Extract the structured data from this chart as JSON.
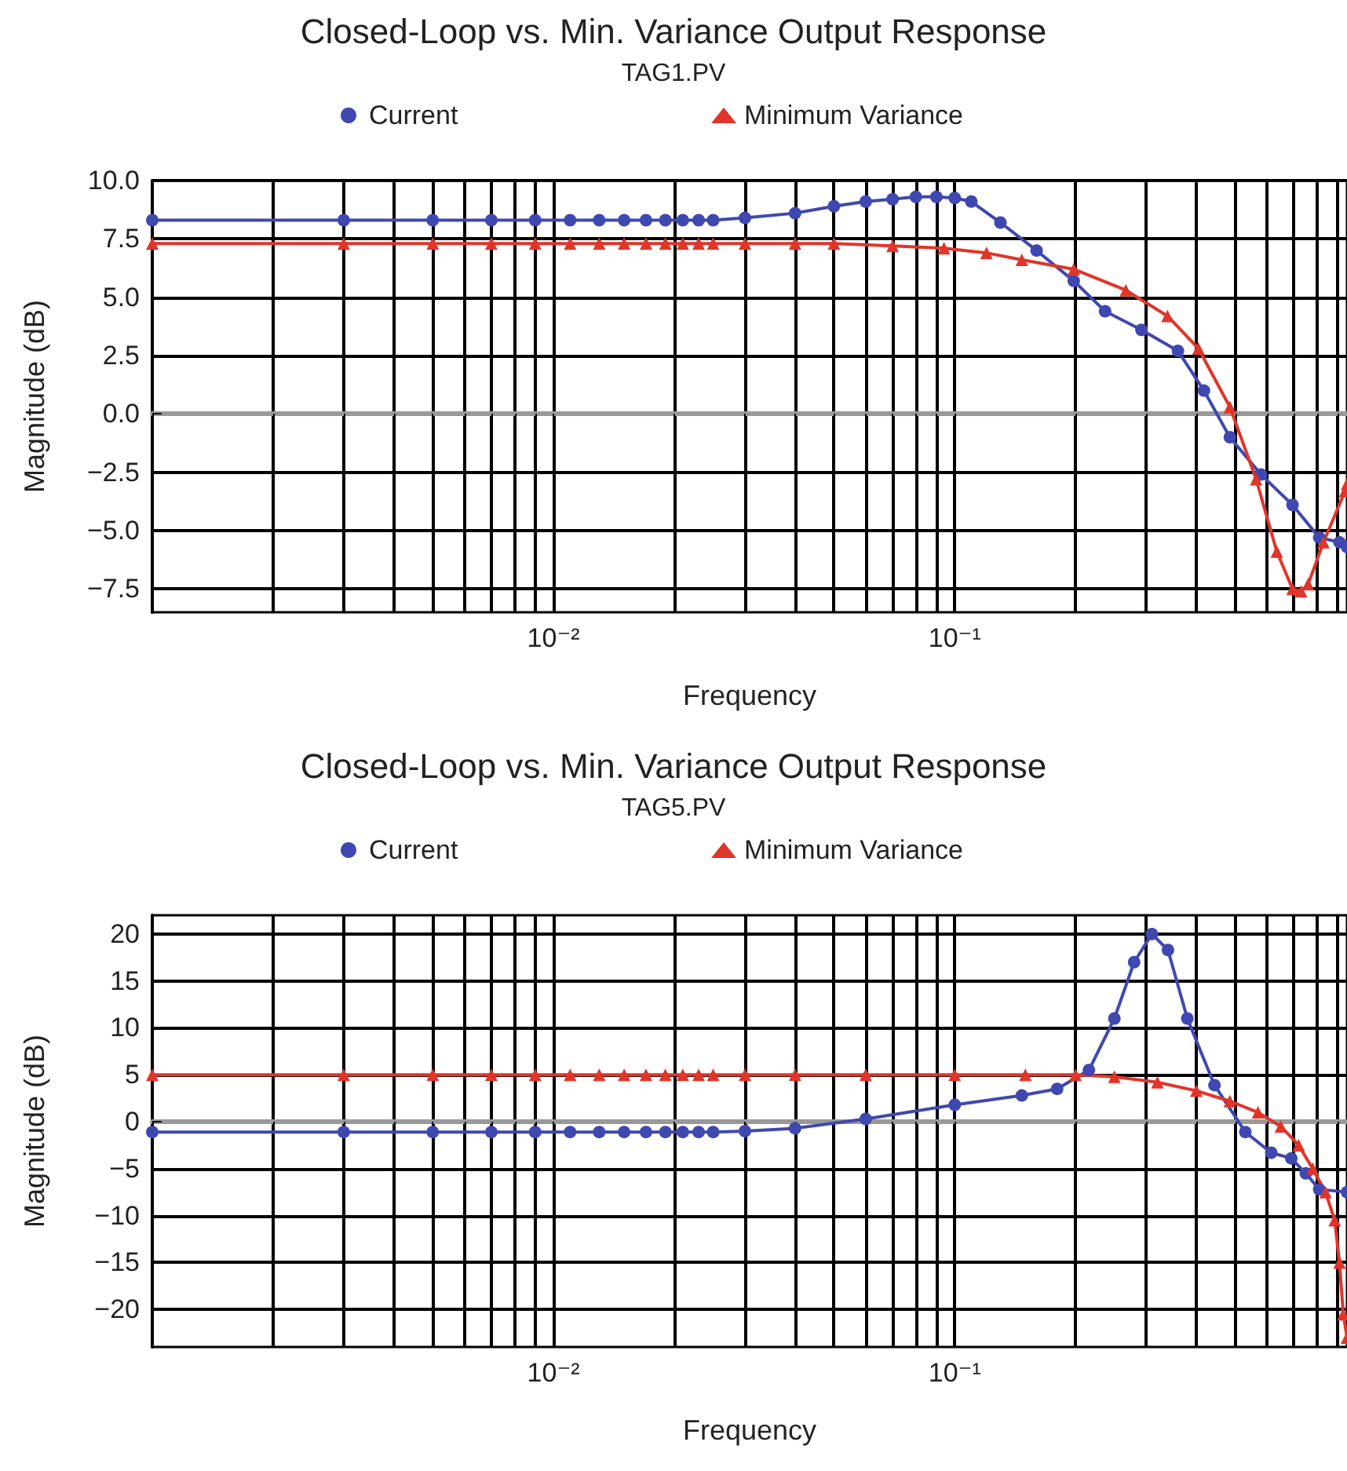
{
  "chart_data": [
    {
      "type": "line",
      "title": "Closed-Loop vs. Min. Variance Output Response",
      "subtitle": "TAG1.PV",
      "xlabel": "Frequency",
      "ylabel": "Magnitude (dB)",
      "log": "x",
      "grid": true,
      "legend": "top",
      "xlim": [
        0.001,
        0.95
      ],
      "ylim": [
        -8.5,
        10
      ],
      "xticks": [
        {
          "value": 0.001,
          "label": null
        },
        {
          "value": 0.002,
          "label": null
        },
        {
          "value": 0.003,
          "label": null
        },
        {
          "value": 0.004,
          "label": null
        },
        {
          "value": 0.005,
          "label": null
        },
        {
          "value": 0.006,
          "label": null
        },
        {
          "value": 0.007,
          "label": null
        },
        {
          "value": 0.008,
          "label": null
        },
        {
          "value": 0.009,
          "label": null
        },
        {
          "value": 0.01,
          "label": "10⁻²"
        },
        {
          "value": 0.02,
          "label": null
        },
        {
          "value": 0.03,
          "label": null
        },
        {
          "value": 0.04,
          "label": null
        },
        {
          "value": 0.05,
          "label": null
        },
        {
          "value": 0.06,
          "label": null
        },
        {
          "value": 0.07,
          "label": null
        },
        {
          "value": 0.08,
          "label": null
        },
        {
          "value": 0.09,
          "label": null
        },
        {
          "value": 0.1,
          "label": "10⁻¹"
        },
        {
          "value": 0.2,
          "label": null
        },
        {
          "value": 0.3,
          "label": null
        },
        {
          "value": 0.4,
          "label": null
        },
        {
          "value": 0.5,
          "label": null
        },
        {
          "value": 0.6,
          "label": null
        },
        {
          "value": 0.7,
          "label": null
        },
        {
          "value": 0.8,
          "label": null
        },
        {
          "value": 0.9,
          "label": null
        }
      ],
      "yticks": [
        {
          "value": 10,
          "label": "10.0"
        },
        {
          "value": 7.5,
          "label": "7.5"
        },
        {
          "value": 5,
          "label": "5.0"
        },
        {
          "value": 2.5,
          "label": "2.5"
        },
        {
          "value": 0,
          "label": "0.0"
        },
        {
          "value": -2.5,
          "label": "−2.5"
        },
        {
          "value": -5,
          "label": "−5.0"
        },
        {
          "value": -7.5,
          "label": "−7.5"
        }
      ],
      "series": [
        {
          "name": "Current",
          "color": "#3f48b0",
          "marker": "circle",
          "x": [
            0.001,
            0.003,
            0.005,
            0.007,
            0.009,
            0.011,
            0.013,
            0.015,
            0.017,
            0.019,
            0.021,
            0.023,
            0.025,
            0.03,
            0.04,
            0.05,
            0.06,
            0.07,
            0.08,
            0.09,
            0.1,
            0.11,
            0.13,
            0.16,
            0.198,
            0.237,
            0.292,
            0.36,
            0.418,
            0.485,
            0.58,
            0.695,
            0.81,
            0.91,
            0.95
          ],
          "values": [
            8.3,
            8.3,
            8.3,
            8.3,
            8.3,
            8.3,
            8.3,
            8.3,
            8.3,
            8.3,
            8.3,
            8.3,
            8.3,
            8.4,
            8.6,
            8.9,
            9.1,
            9.2,
            9.3,
            9.3,
            9.25,
            9.1,
            8.2,
            7.0,
            5.7,
            4.4,
            3.6,
            2.7,
            1.0,
            -1.0,
            -2.6,
            -3.9,
            -5.3,
            -5.5,
            -5.7
          ]
        },
        {
          "name": "Minimum Variance",
          "color": "#e0352a",
          "marker": "triangle",
          "x": [
            0.001,
            0.003,
            0.005,
            0.007,
            0.009,
            0.011,
            0.013,
            0.015,
            0.017,
            0.019,
            0.021,
            0.023,
            0.025,
            0.03,
            0.04,
            0.05,
            0.07,
            0.094,
            0.12,
            0.147,
            0.198,
            0.267,
            0.339,
            0.405,
            0.485,
            0.564,
            0.635,
            0.695,
            0.73,
            0.76,
            0.83,
            0.94,
            0.95
          ],
          "values": [
            7.3,
            7.3,
            7.3,
            7.3,
            7.3,
            7.3,
            7.3,
            7.3,
            7.3,
            7.3,
            7.3,
            7.3,
            7.3,
            7.3,
            7.3,
            7.3,
            7.2,
            7.1,
            6.9,
            6.6,
            6.2,
            5.3,
            4.2,
            2.8,
            0.3,
            -2.8,
            -5.9,
            -7.5,
            -7.6,
            -7.3,
            -5.5,
            -3.3,
            -3.0
          ]
        }
      ]
    },
    {
      "type": "line",
      "title": "Closed-Loop vs. Min. Variance Output Response",
      "subtitle": "TAG5.PV",
      "xlabel": "Frequency",
      "ylabel": "Magnitude (dB)",
      "log": "x",
      "grid": true,
      "legend": "top",
      "xlim": [
        0.001,
        0.95
      ],
      "ylim": [
        -24,
        22
      ],
      "xticks": [
        {
          "value": 0.001,
          "label": null
        },
        {
          "value": 0.002,
          "label": null
        },
        {
          "value": 0.003,
          "label": null
        },
        {
          "value": 0.004,
          "label": null
        },
        {
          "value": 0.005,
          "label": null
        },
        {
          "value": 0.006,
          "label": null
        },
        {
          "value": 0.007,
          "label": null
        },
        {
          "value": 0.008,
          "label": null
        },
        {
          "value": 0.009,
          "label": null
        },
        {
          "value": 0.01,
          "label": "10⁻²"
        },
        {
          "value": 0.02,
          "label": null
        },
        {
          "value": 0.03,
          "label": null
        },
        {
          "value": 0.04,
          "label": null
        },
        {
          "value": 0.05,
          "label": null
        },
        {
          "value": 0.06,
          "label": null
        },
        {
          "value": 0.07,
          "label": null
        },
        {
          "value": 0.08,
          "label": null
        },
        {
          "value": 0.09,
          "label": null
        },
        {
          "value": 0.1,
          "label": "10⁻¹"
        },
        {
          "value": 0.2,
          "label": null
        },
        {
          "value": 0.3,
          "label": null
        },
        {
          "value": 0.4,
          "label": null
        },
        {
          "value": 0.5,
          "label": null
        },
        {
          "value": 0.6,
          "label": null
        },
        {
          "value": 0.7,
          "label": null
        },
        {
          "value": 0.8,
          "label": null
        },
        {
          "value": 0.9,
          "label": null
        }
      ],
      "yticks": [
        20,
        15,
        10,
        5,
        0,
        {
          "value": -5,
          "label": "−5"
        },
        {
          "value": -10,
          "label": "−10"
        },
        {
          "value": -15,
          "label": "−15"
        },
        {
          "value": -20,
          "label": "−20"
        }
      ],
      "series": [
        {
          "name": "Current",
          "color": "#3f48b0",
          "marker": "circle",
          "x": [
            0.001,
            0.003,
            0.005,
            0.007,
            0.009,
            0.011,
            0.013,
            0.015,
            0.017,
            0.019,
            0.021,
            0.023,
            0.025,
            0.03,
            0.04,
            0.06,
            0.1,
            0.147,
            0.18,
            0.216,
            0.25,
            0.28,
            0.31,
            0.34,
            0.38,
            0.444,
            0.53,
            0.615,
            0.69,
            0.75,
            0.81,
            0.95
          ],
          "values": [
            -1.1,
            -1.1,
            -1.1,
            -1.1,
            -1.1,
            -1.1,
            -1.1,
            -1.1,
            -1.1,
            -1.1,
            -1.1,
            -1.1,
            -1.1,
            -1.0,
            -0.7,
            0.3,
            1.8,
            2.8,
            3.5,
            5.5,
            11,
            17,
            20,
            18.3,
            11,
            3.9,
            -1.1,
            -3.3,
            -3.9,
            -5.5,
            -7.2,
            -7.5
          ]
        },
        {
          "name": "Minimum Variance",
          "color": "#e0352a",
          "marker": "triangle",
          "x": [
            0.001,
            0.003,
            0.005,
            0.007,
            0.009,
            0.011,
            0.013,
            0.015,
            0.017,
            0.019,
            0.021,
            0.023,
            0.025,
            0.03,
            0.04,
            0.06,
            0.1,
            0.15,
            0.2,
            0.25,
            0.32,
            0.4,
            0.485,
            0.57,
            0.65,
            0.72,
            0.78,
            0.84,
            0.885,
            0.91,
            0.93,
            0.95
          ],
          "values": [
            5.0,
            5.0,
            5.0,
            5.0,
            5.0,
            5.0,
            5.0,
            5.0,
            5.0,
            5.0,
            5.0,
            5.0,
            5.0,
            5.0,
            5.0,
            5.0,
            5.0,
            5.0,
            5.0,
            4.8,
            4.2,
            3.3,
            2.2,
            1.0,
            -0.5,
            -2.5,
            -5,
            -7.5,
            -10.5,
            -15,
            -20.5,
            -23
          ]
        }
      ]
    }
  ]
}
